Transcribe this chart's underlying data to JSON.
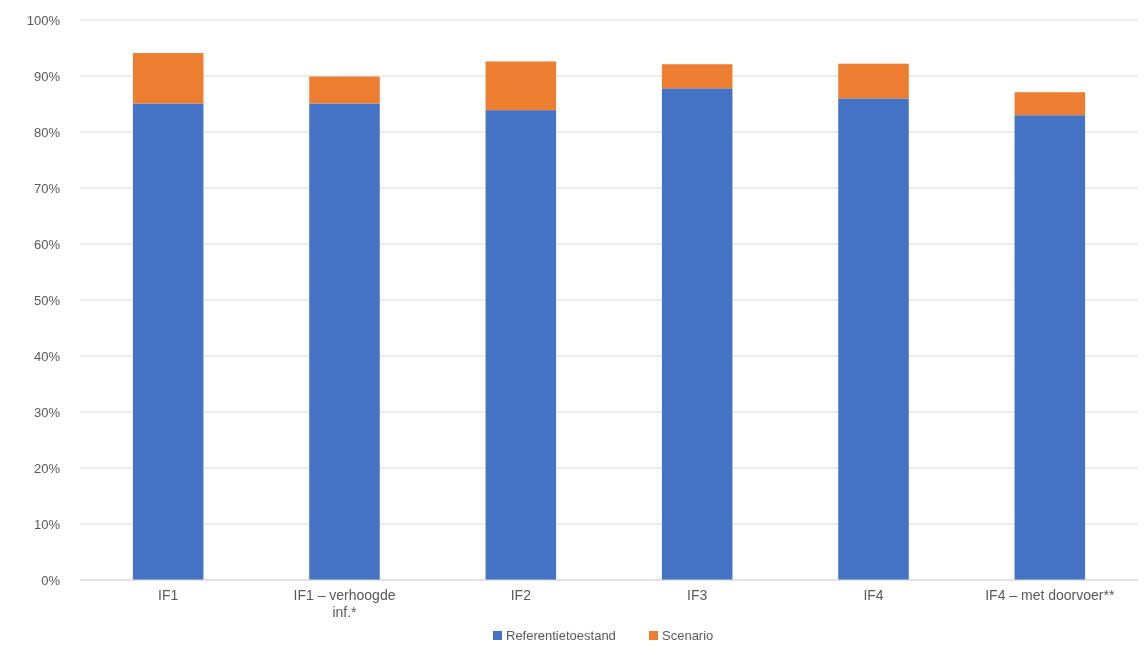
{
  "chart_data": {
    "type": "bar",
    "stacked": true,
    "categories": [
      "IF1",
      "IF1 – verhoogde inf.*",
      "IF2",
      "IF3",
      "IF4",
      "IF4 – met doorvoer**"
    ],
    "series": [
      {
        "name": "Referentietoestand",
        "color": "#4472c4",
        "values": [
          85.1,
          85.1,
          83.9,
          87.8,
          86.0,
          83.0
        ]
      },
      {
        "name": "Scenario",
        "color": "#ed7d31",
        "values": [
          9.0,
          4.8,
          8.7,
          4.3,
          6.2,
          4.1
        ]
      }
    ],
    "ylim": [
      0,
      100
    ],
    "yticks": [
      {
        "value": 0,
        "label": "0%"
      },
      {
        "value": 10,
        "label": "10%"
      },
      {
        "value": 20,
        "label": "20%"
      },
      {
        "value": 30,
        "label": "30%"
      },
      {
        "value": 40,
        "label": "40%"
      },
      {
        "value": 50,
        "label": "50%"
      },
      {
        "value": 60,
        "label": "60%"
      },
      {
        "value": 70,
        "label": "70%"
      },
      {
        "value": 80,
        "label": "80%"
      },
      {
        "value": 90,
        "label": "90%"
      },
      {
        "value": 100,
        "label": "100%"
      }
    ],
    "grid": "y",
    "legend": "bottom"
  }
}
